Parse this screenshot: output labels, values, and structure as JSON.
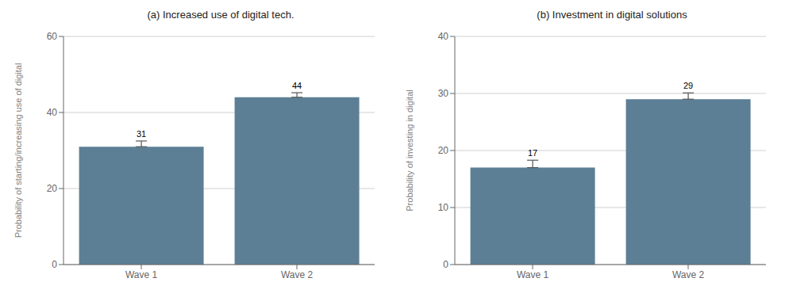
{
  "chart_data": [
    {
      "type": "bar",
      "title": "(a) Increased use of digital tech.",
      "categories": [
        "Wave 1",
        "Wave 2"
      ],
      "values": [
        31,
        44
      ],
      "errors": [
        1.5,
        1.2
      ],
      "ylabel": "Probability of starting/increasing use of digital",
      "ylim": [
        0,
        60
      ],
      "yticks": [
        0,
        20,
        40,
        60
      ],
      "color": "#5c7f96",
      "grid": true,
      "data_labels": true
    },
    {
      "type": "bar",
      "title": "(b) Investment in digital solutions",
      "categories": [
        "Wave 1",
        "Wave 2"
      ],
      "values": [
        17,
        29
      ],
      "errors": [
        1.3,
        1.1
      ],
      "ylabel": "Probability of investing in digital",
      "ylim": [
        0,
        40
      ],
      "yticks": [
        0,
        10,
        20,
        30,
        40
      ],
      "color": "#5c7f96",
      "grid": true,
      "data_labels": true
    }
  ]
}
